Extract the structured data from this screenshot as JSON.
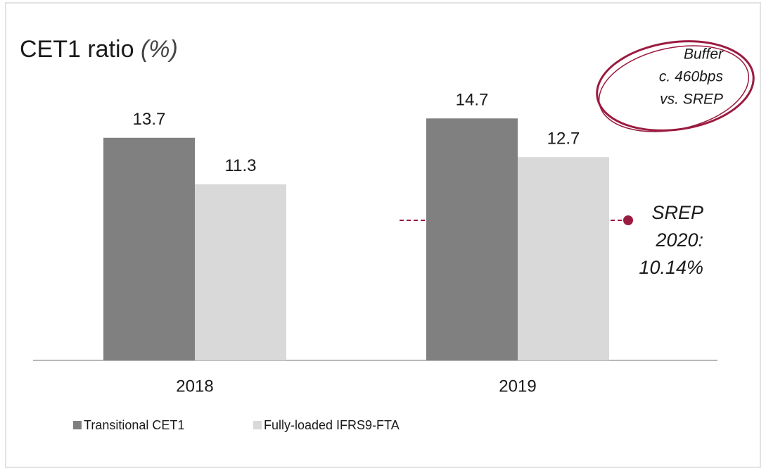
{
  "chart_data": {
    "type": "bar",
    "title": "CET1 ratio",
    "title_unit": "(%)",
    "categories": [
      "2018",
      "2019"
    ],
    "series": [
      {
        "name": "Transitional CET1",
        "color": "#808080",
        "values": [
          13.7,
          14.7
        ]
      },
      {
        "name": "Fully-loaded IFRS9-FTA",
        "color": "#d9d9d9",
        "values": [
          11.3,
          12.7
        ]
      }
    ],
    "ylim": [
      2.2,
      16
    ],
    "annotations": [
      {
        "lines": [
          "SREP",
          "2020:",
          "10.14%"
        ]
      },
      {
        "lines": [
          "Buffer",
          "c. 460bps",
          "vs. SREP"
        ]
      }
    ]
  }
}
